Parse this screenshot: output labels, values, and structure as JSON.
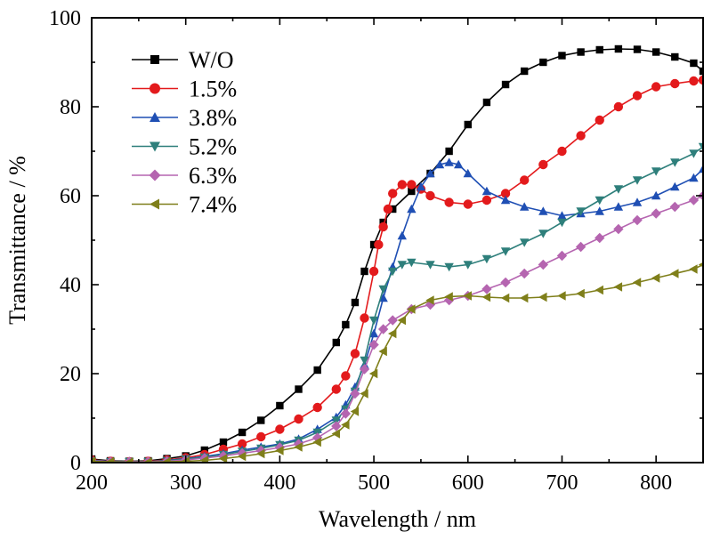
{
  "chart_data": {
    "type": "line",
    "xlabel": "Wavelength / nm",
    "ylabel": "Transmittance / %",
    "xlim": [
      200,
      850
    ],
    "ylim": [
      0,
      100
    ],
    "xticks": [
      200,
      300,
      400,
      500,
      600,
      700,
      800
    ],
    "yticks": [
      0,
      20,
      40,
      60,
      80,
      100
    ],
    "legend_position": "top-left",
    "grid": false,
    "series": [
      {
        "name": "W/O",
        "color": "#000000",
        "marker": "square",
        "x": [
          200,
          220,
          240,
          260,
          280,
          300,
          320,
          340,
          360,
          380,
          400,
          420,
          440,
          460,
          470,
          480,
          490,
          500,
          510,
          520,
          540,
          560,
          580,
          600,
          620,
          640,
          660,
          680,
          700,
          720,
          740,
          760,
          780,
          800,
          820,
          840,
          850
        ],
        "y": [
          0.8,
          0.4,
          0.3,
          0.4,
          0.9,
          1.5,
          2.8,
          4.6,
          6.8,
          9.5,
          12.8,
          16.5,
          20.8,
          27,
          31,
          36,
          43,
          49,
          54,
          57,
          61,
          65,
          70,
          76,
          81,
          85,
          88,
          90,
          91.5,
          92.3,
          92.8,
          93,
          92.9,
          92.3,
          91.2,
          89.8,
          88
        ]
      },
      {
        "name": "1.5%",
        "color": "#e31a1c",
        "marker": "circle",
        "x": [
          200,
          220,
          240,
          260,
          280,
          300,
          320,
          340,
          360,
          380,
          400,
          420,
          440,
          460,
          470,
          480,
          490,
          500,
          505,
          510,
          515,
          520,
          530,
          540,
          550,
          560,
          580,
          600,
          620,
          640,
          660,
          680,
          700,
          720,
          740,
          760,
          780,
          800,
          820,
          840,
          850
        ],
        "y": [
          0.6,
          0.3,
          0.2,
          0.3,
          0.6,
          1.1,
          1.8,
          3,
          4.2,
          5.8,
          7.5,
          9.8,
          12.4,
          16.5,
          19.5,
          24.5,
          32.5,
          43,
          49,
          53,
          57,
          60.5,
          62.5,
          62.5,
          61.5,
          60,
          58.5,
          58.1,
          59,
          60.5,
          63.5,
          67,
          70,
          73.5,
          77,
          80,
          82.5,
          84.5,
          85.2,
          85.8,
          86
        ]
      },
      {
        "name": "3.8%",
        "color": "#1f4fb4",
        "marker": "triangle-up",
        "x": [
          200,
          220,
          240,
          260,
          280,
          300,
          320,
          340,
          360,
          380,
          400,
          420,
          440,
          460,
          470,
          480,
          490,
          500,
          510,
          520,
          530,
          540,
          550,
          560,
          570,
          580,
          590,
          600,
          620,
          640,
          660,
          680,
          700,
          720,
          740,
          760,
          780,
          800,
          820,
          840,
          850
        ],
        "y": [
          0.5,
          0.3,
          0.2,
          0.2,
          0.5,
          0.9,
          1.4,
          2,
          2.8,
          3.5,
          4.2,
          5.3,
          7.5,
          10.2,
          13,
          17,
          22,
          29,
          37,
          44,
          51,
          57,
          62,
          65,
          67,
          67.5,
          67,
          65,
          61,
          59,
          57.5,
          56.5,
          55.5,
          56,
          56.5,
          57.5,
          58.5,
          60,
          62,
          64,
          66
        ]
      },
      {
        "name": "5.2%",
        "color": "#2e7f7b",
        "marker": "triangle-down",
        "x": [
          200,
          220,
          240,
          260,
          280,
          300,
          320,
          340,
          360,
          380,
          400,
          420,
          440,
          460,
          470,
          480,
          490,
          500,
          510,
          520,
          530,
          540,
          560,
          580,
          600,
          620,
          640,
          660,
          680,
          700,
          720,
          740,
          760,
          780,
          800,
          820,
          840,
          850
        ],
        "y": [
          0.4,
          0.2,
          0.2,
          0.2,
          0.4,
          0.8,
          1.2,
          1.8,
          2.5,
          3.2,
          4,
          5,
          6.8,
          9.5,
          12,
          16,
          23,
          32,
          39,
          43,
          44.5,
          45,
          44.5,
          44,
          44.5,
          45.8,
          47.5,
          49.5,
          51.5,
          54,
          56.5,
          59,
          61.5,
          63.5,
          65.5,
          67.5,
          69.5,
          71
        ]
      },
      {
        "name": "6.3%",
        "color": "#b565b0",
        "marker": "diamond",
        "x": [
          200,
          220,
          240,
          260,
          280,
          300,
          320,
          340,
          360,
          380,
          400,
          420,
          440,
          460,
          470,
          480,
          490,
          500,
          510,
          520,
          540,
          560,
          580,
          600,
          620,
          640,
          660,
          680,
          700,
          720,
          740,
          760,
          780,
          800,
          820,
          840,
          850
        ],
        "y": [
          0.4,
          0.2,
          0.2,
          0.2,
          0.3,
          0.6,
          1,
          1.5,
          2.1,
          2.7,
          3.4,
          4.2,
          5.6,
          8.2,
          11,
          15.5,
          21,
          26.5,
          30,
          32,
          34.5,
          35.5,
          36.5,
          37.5,
          39,
          40.5,
          42.5,
          44.5,
          46.5,
          48.5,
          50.5,
          52.5,
          54.5,
          56,
          57.5,
          59,
          60
        ]
      },
      {
        "name": "7.4%",
        "color": "#7f7f1a",
        "marker": "triangle-left",
        "x": [
          200,
          220,
          240,
          260,
          280,
          300,
          320,
          340,
          360,
          380,
          400,
          420,
          440,
          460,
          470,
          480,
          490,
          500,
          510,
          520,
          530,
          540,
          560,
          580,
          600,
          620,
          640,
          660,
          680,
          700,
          720,
          740,
          760,
          780,
          800,
          820,
          840,
          850
        ],
        "y": [
          0.3,
          0.2,
          0.1,
          0.1,
          0.2,
          0.3,
          0.5,
          0.9,
          1.4,
          2,
          2.7,
          3.5,
          4.6,
          6.5,
          8.5,
          11.5,
          15.5,
          20,
          25,
          29,
          32,
          34.5,
          36.5,
          37.3,
          37.5,
          37.2,
          37,
          37,
          37.2,
          37.5,
          38,
          38.8,
          39.5,
          40.5,
          41.5,
          42.5,
          43.5,
          44.5
        ]
      }
    ]
  }
}
